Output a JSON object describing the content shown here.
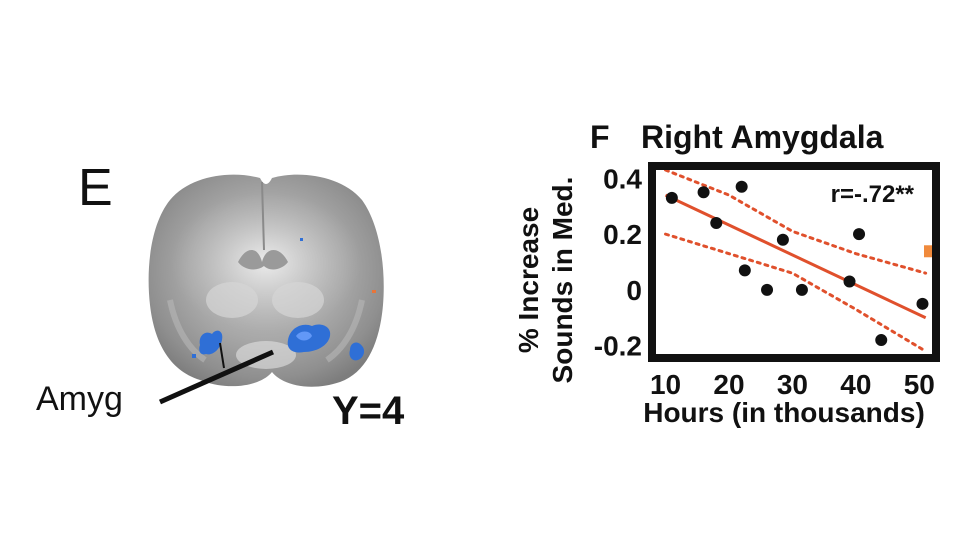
{
  "panel_e": {
    "letter": "E",
    "region_label": "Amyg",
    "slice_label": "Y=4"
  },
  "panel_f": {
    "letter": "F",
    "title": "Right Amygdala"
  },
  "chart_data": {
    "type": "scatter",
    "title": "Right Amygdala",
    "xlabel": "Hours (in thousands)",
    "ylabel_line1": "% Increase",
    "ylabel_line2": "Sounds in Med.",
    "xlim": [
      8.5,
      52
    ],
    "ylim": [
      -0.23,
      0.43
    ],
    "xticks": [
      10,
      20,
      30,
      40,
      50
    ],
    "yticks": [
      0.4,
      0.2,
      0,
      -0.2
    ],
    "ytick_labels": [
      "0.4",
      "0.2",
      "0",
      "-0.2"
    ],
    "annotation": "r=-.72**",
    "grid": false,
    "points": [
      {
        "x": 11,
        "y": 0.33
      },
      {
        "x": 16,
        "y": 0.35
      },
      {
        "x": 18,
        "y": 0.24
      },
      {
        "x": 22,
        "y": 0.37
      },
      {
        "x": 22.5,
        "y": 0.07
      },
      {
        "x": 26,
        "y": 0.0
      },
      {
        "x": 28.5,
        "y": 0.18
      },
      {
        "x": 31.5,
        "y": 0.0
      },
      {
        "x": 39,
        "y": 0.03
      },
      {
        "x": 40.5,
        "y": 0.2
      },
      {
        "x": 44,
        "y": -0.18
      },
      {
        "x": 50.5,
        "y": -0.05
      }
    ],
    "fit_line": {
      "x": [
        10,
        51
      ],
      "y": [
        0.34,
        -0.1
      ]
    },
    "ci_upper": {
      "x": [
        10,
        20,
        30,
        40,
        51
      ],
      "y": [
        0.43,
        0.34,
        0.21,
        0.13,
        0.06
      ]
    },
    "ci_lower": {
      "x": [
        10,
        20,
        30,
        40,
        51
      ],
      "y": [
        0.2,
        0.13,
        0.06,
        -0.07,
        -0.22
      ]
    },
    "colors": {
      "points": "#111111",
      "fit": "#e0502c",
      "ci": "#e0502c",
      "frame": "#111111",
      "marker": "#f08a3c"
    }
  },
  "colors": {
    "activation_blue": "#2f6fd6",
    "activation_orange": "#e8753a"
  }
}
